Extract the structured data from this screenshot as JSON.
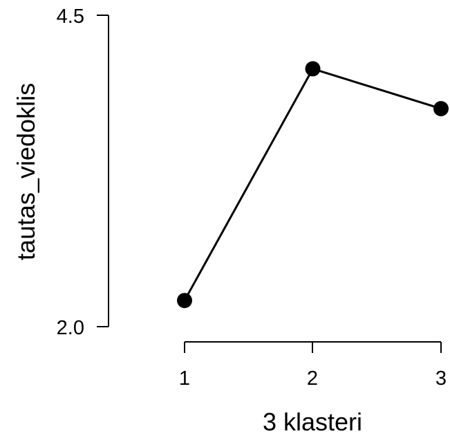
{
  "chart_data": {
    "type": "line",
    "title": "",
    "xlabel": "3 klasteri",
    "ylabel": "tautas_viedoklis",
    "categories": [
      "1",
      "2",
      "3"
    ],
    "series": [
      {
        "values": [
          2.21,
          4.07,
          3.75
        ]
      }
    ],
    "ylim": [
      2.0,
      4.5
    ],
    "yticks": [
      "2.0",
      "4.5"
    ],
    "grid": false,
    "legend": "none",
    "colors": {
      "line": "#000000",
      "point": "#000000"
    }
  }
}
